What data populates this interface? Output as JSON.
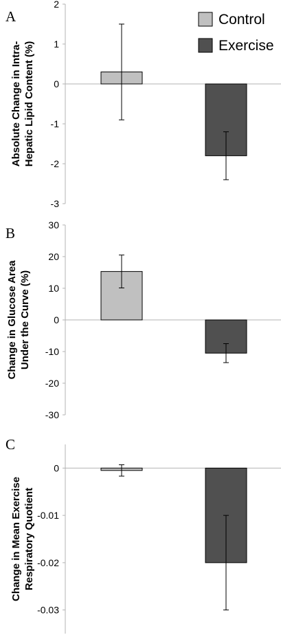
{
  "colors": {
    "control": "#c0c0c0",
    "exercise": "#505050",
    "axis": "#b3b3b3",
    "error": "#000000"
  },
  "legend": {
    "placement": "top-right",
    "entries": [
      "Control",
      "Exercise"
    ]
  },
  "chart_data": [
    {
      "panel": "A",
      "type": "bar",
      "categories": [
        "Control",
        "Exercise"
      ],
      "values": [
        0.3,
        -1.8
      ],
      "errors": [
        1.2,
        0.6
      ],
      "ylabel": [
        "Absolute Change in Intra-",
        "Hepatic Lipid Content (%)"
      ],
      "ylim": [
        -3,
        2
      ],
      "ticks": [
        2,
        1,
        0,
        -1,
        -2,
        -3
      ],
      "tick_labels": [
        "2",
        "1",
        "0",
        "-1",
        "-2",
        "-3"
      ],
      "grid": false
    },
    {
      "panel": "B",
      "type": "bar",
      "categories": [
        "Control",
        "Exercise"
      ],
      "values": [
        15.3,
        -10.5
      ],
      "errors": [
        5.2,
        3.0
      ],
      "ylabel": [
        "Change in Glucose Area",
        "Under the Curve (%)"
      ],
      "ylim": [
        -30,
        30
      ],
      "ticks": [
        30,
        20,
        10,
        0,
        -10,
        -20,
        -30
      ],
      "tick_labels": [
        "30",
        "20",
        "10",
        "0",
        "-10",
        "-20",
        "-30"
      ],
      "grid": false
    },
    {
      "panel": "C",
      "type": "bar",
      "categories": [
        "Control",
        "Exercise"
      ],
      "values": [
        -0.0005,
        -0.02
      ],
      "errors": [
        0.0012,
        0.01
      ],
      "ylabel": [
        "Change in Mean Exercise",
        "Respiratory Quotient"
      ],
      "ylim": [
        -0.035,
        0.005
      ],
      "ticks": [
        0,
        -0.01,
        -0.02,
        -0.03
      ],
      "tick_labels": [
        "0",
        "-0.01",
        "-0.02",
        "-0.03"
      ],
      "grid": false
    }
  ]
}
